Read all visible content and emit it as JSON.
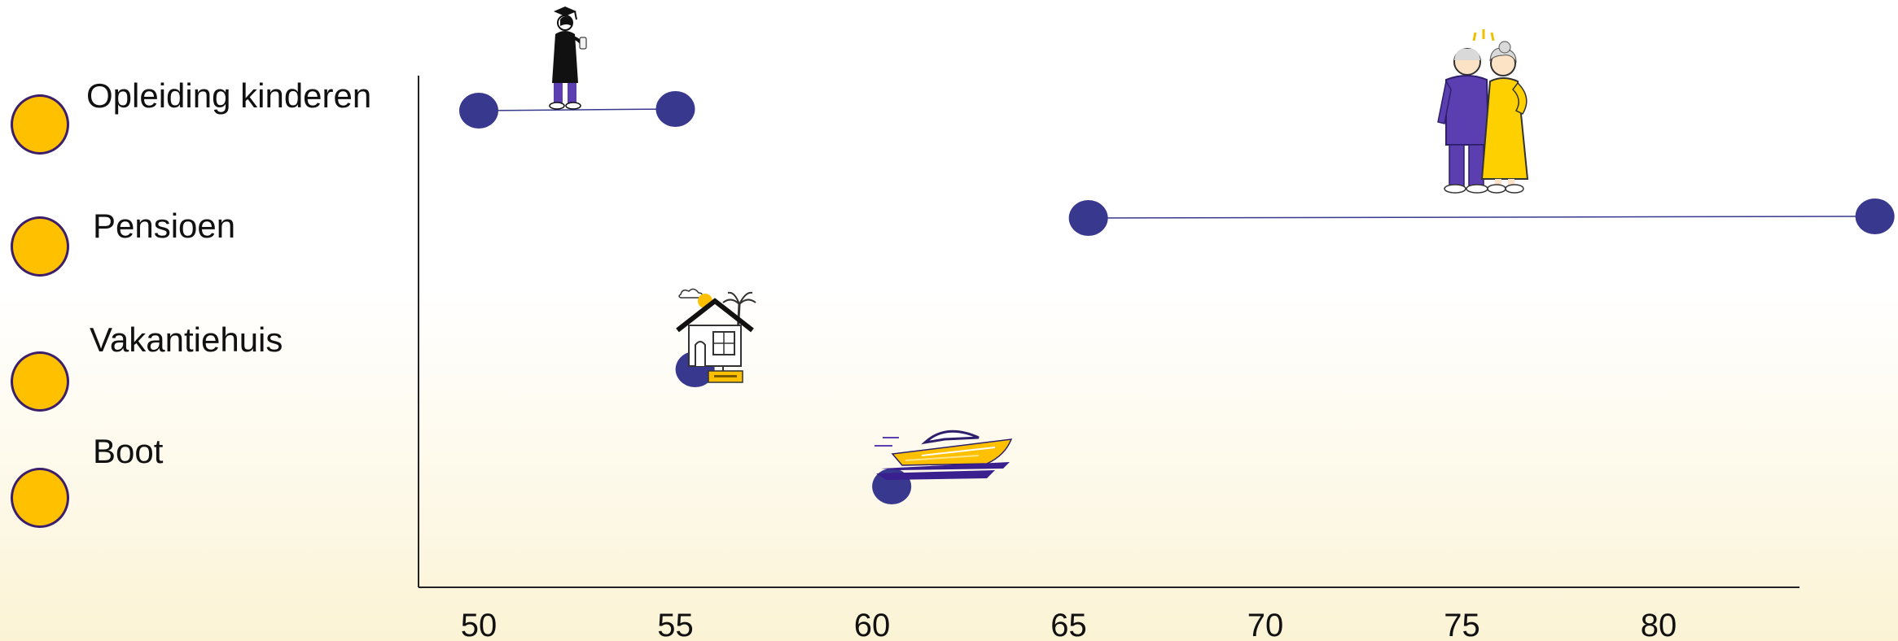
{
  "chart_data": {
    "type": "scatter",
    "title": "",
    "xlabel": "",
    "ylabel": "",
    "x_ticks": [
      50,
      55,
      60,
      65,
      70,
      75,
      80
    ],
    "xlim": [
      49,
      84
    ],
    "grid": false,
    "legend_position": "left",
    "colors": {
      "marker": "#38398e",
      "line": "#38398e",
      "legend_marker": "#ffc000",
      "legend_border": "#3b1f6b",
      "axis": "#222222"
    },
    "series": [
      {
        "name": "Opleiding kinderen",
        "start": 50,
        "end": 55,
        "icon": "graduate-icon"
      },
      {
        "name": "Pensioen",
        "start": 65.5,
        "end": 85.5,
        "icon": "elderly-couple-icon"
      },
      {
        "name": "Vakantiehuis",
        "start": 55.5,
        "end": null,
        "icon": "vacation-house-icon"
      },
      {
        "name": "Boot",
        "start": 60.5,
        "end": null,
        "icon": "boat-icon"
      }
    ]
  }
}
